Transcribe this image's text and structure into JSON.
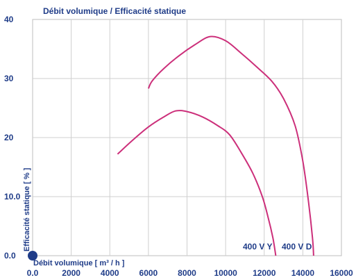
{
  "chart_data": {
    "type": "line",
    "title": "Débit volumique / Efficacité statique",
    "xlabel": "Débit volumique [ m³ / h ]",
    "ylabel": "Efficacité statique [ % ]",
    "xlim": [
      0,
      16000
    ],
    "ylim": [
      0,
      40
    ],
    "grid": true,
    "x_ticks": [
      "0.0",
      "2000",
      "4000",
      "6000",
      "8000",
      "10000",
      "12000",
      "14000",
      "16000"
    ],
    "y_ticks": [
      "0.0",
      "10.0",
      "20",
      "30",
      "40"
    ],
    "colors": {
      "series": "#cc2f7a",
      "text": "#1f3c88",
      "marker": "#1f3c88",
      "grid": "#cfcfcf"
    },
    "series": [
      {
        "name": "400 V Y",
        "points": [
          [
            4400,
            17.2
          ],
          [
            5200,
            19.6
          ],
          [
            6000,
            21.8
          ],
          [
            6800,
            23.5
          ],
          [
            7400,
            24.5
          ],
          [
            8000,
            24.4
          ],
          [
            8800,
            23.5
          ],
          [
            9600,
            22.0
          ],
          [
            10200,
            20.5
          ],
          [
            10800,
            17.5
          ],
          [
            11400,
            14.0
          ],
          [
            11900,
            10.0
          ],
          [
            12200,
            6.5
          ],
          [
            12450,
            3.0
          ],
          [
            12600,
            0.0
          ]
        ]
      },
      {
        "name": "400 V D",
        "points": [
          [
            6000,
            28.3
          ],
          [
            6200,
            29.6
          ],
          [
            6800,
            31.7
          ],
          [
            7600,
            33.9
          ],
          [
            8400,
            35.7
          ],
          [
            9200,
            37.1
          ],
          [
            10000,
            36.4
          ],
          [
            10800,
            34.3
          ],
          [
            11600,
            32.0
          ],
          [
            12400,
            29.5
          ],
          [
            13000,
            26.6
          ],
          [
            13600,
            22.0
          ],
          [
            14000,
            16.0
          ],
          [
            14300,
            9.0
          ],
          [
            14500,
            3.0
          ],
          [
            14560,
            0.0
          ]
        ]
      }
    ]
  }
}
